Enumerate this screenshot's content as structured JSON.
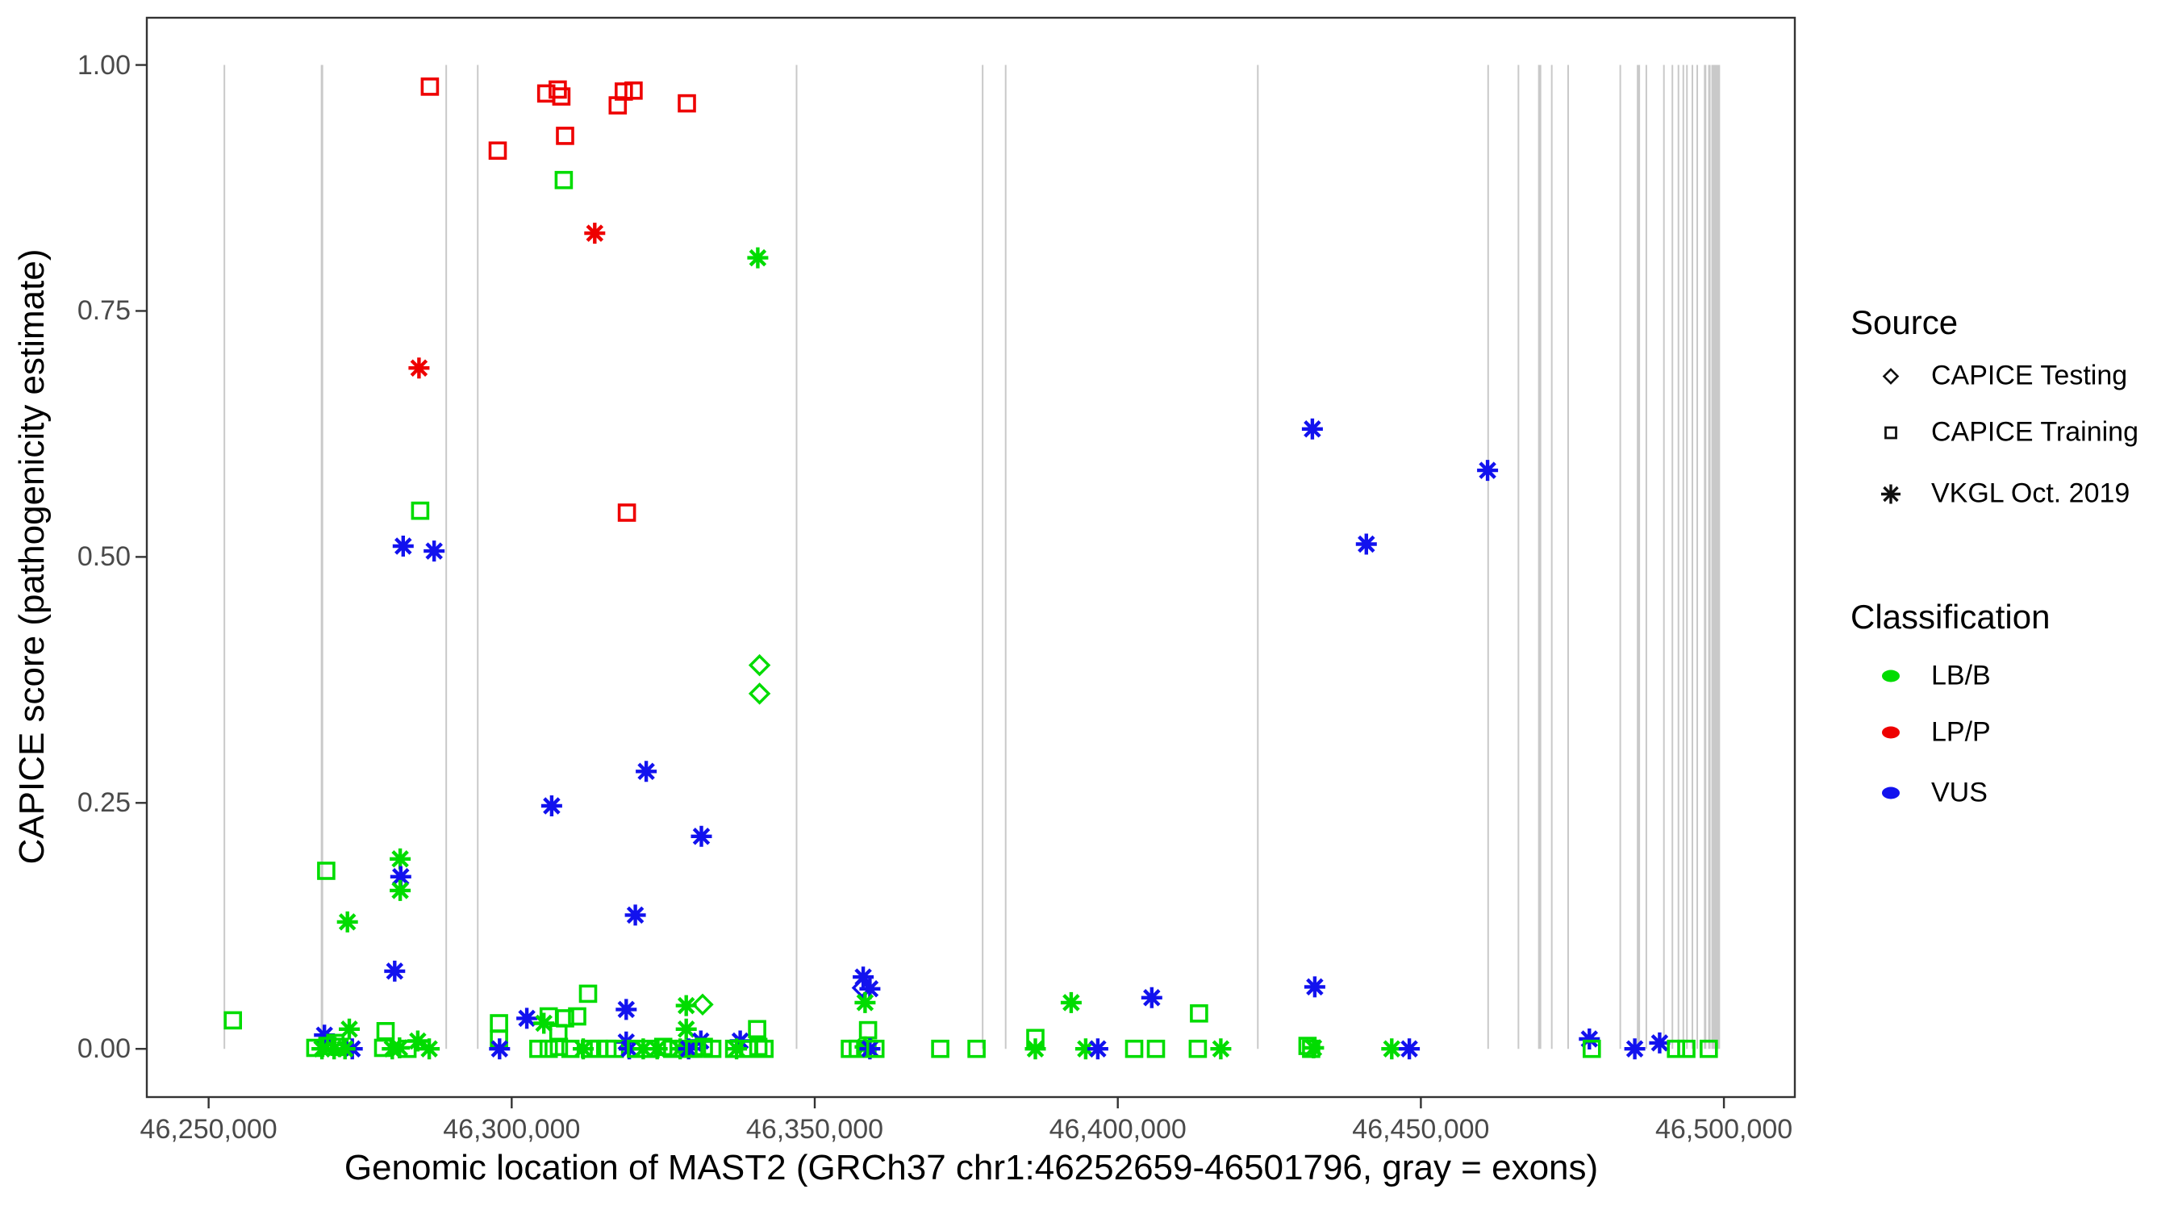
{
  "legend": {
    "source_title": "Source",
    "source_items": [
      {
        "label": "CAPICE Testing",
        "marker": "diamond"
      },
      {
        "label": "CAPICE Training",
        "marker": "square"
      },
      {
        "label": "VKGL Oct. 2019",
        "marker": "asterisk"
      }
    ],
    "class_title": "Classification",
    "class_items": [
      {
        "label": "LB/B",
        "key": "LB"
      },
      {
        "label": "LP/P",
        "key": "LP"
      },
      {
        "label": "VUS",
        "key": "VUS"
      }
    ]
  },
  "chart_data": {
    "type": "scatter",
    "title": "",
    "xlabel": "Genomic location of MAST2 (GRCh37 chr1:46252659-46501796, gray = exons)",
    "ylabel": "CAPICE score (pathogenicity estimate)",
    "xlim": [
      46239800,
      46511700
    ],
    "ylim": [
      -0.049,
      1.048
    ],
    "grid": "off",
    "legend_position": "right",
    "x_ticks": [
      46250000,
      46300000,
      46350000,
      46400000,
      46450000,
      46500000
    ],
    "x_tick_labels": [
      "46,250,000",
      "46,300,000",
      "46,350,000",
      "46,400,000",
      "46,450,000",
      "46,500,000"
    ],
    "y_ticks": [
      0,
      0.25,
      0.5,
      0.75,
      1
    ],
    "y_tick_labels": [
      "0.00",
      "0.25",
      "0.50",
      "0.75",
      "1.00"
    ],
    "colors": {
      "LB": "#00dc00",
      "LP": "#ee0000",
      "VUS": "#1212ee",
      "exon": "#c9c9c9",
      "axis": "#333333"
    },
    "marker_meaning": {
      "di": "CAPICE Testing",
      "sq": "CAPICE Training",
      "as": "VKGL Oct. 2019"
    },
    "class_meaning": {
      "LB": "LB/B",
      "LP": "LP/P",
      "VUS": "VUS"
    },
    "exon_span": {
      "y_from": 0.0,
      "y_to": 1.0
    },
    "exons": [
      {
        "pos": 46252600,
        "w": 2
      },
      {
        "pos": 46268700,
        "w": 3
      },
      {
        "pos": 46289200,
        "w": 2
      },
      {
        "pos": 46294400,
        "w": 2
      },
      {
        "pos": 46347000,
        "w": 2
      },
      {
        "pos": 46377700,
        "w": 2
      },
      {
        "pos": 46381500,
        "w": 2
      },
      {
        "pos": 46423100,
        "w": 2
      },
      {
        "pos": 46461100,
        "w": 2
      },
      {
        "pos": 46466100,
        "w": 2
      },
      {
        "pos": 46469600,
        "w": 4
      },
      {
        "pos": 46471600,
        "w": 2
      },
      {
        "pos": 46474300,
        "w": 2
      },
      {
        "pos": 46482900,
        "w": 2
      },
      {
        "pos": 46485900,
        "w": 4
      },
      {
        "pos": 46487200,
        "w": 2
      },
      {
        "pos": 46490100,
        "w": 2
      },
      {
        "pos": 46491500,
        "w": 2
      },
      {
        "pos": 46492500,
        "w": 2
      },
      {
        "pos": 46493300,
        "w": 2
      },
      {
        "pos": 46493900,
        "w": 2
      },
      {
        "pos": 46494800,
        "w": 2
      },
      {
        "pos": 46495600,
        "w": 2
      },
      {
        "pos": 46496900,
        "w": 3
      },
      {
        "pos": 46497600,
        "w": 3
      },
      {
        "pos": 46498200,
        "w": 4
      },
      {
        "pos": 46498900,
        "w": 7
      }
    ],
    "point_format": [
      "genomic_position",
      "capice_score",
      "marker",
      "classification"
    ],
    "points": [
      [
        46286500,
        0.978,
        "sq",
        "LP"
      ],
      [
        46305700,
        0.971,
        "sq",
        "LP"
      ],
      [
        46307600,
        0.975,
        "sq",
        "LP"
      ],
      [
        46308200,
        0.968,
        "sq",
        "LP"
      ],
      [
        46317500,
        0.959,
        "sq",
        "LP"
      ],
      [
        46318500,
        0.973,
        "sq",
        "LP"
      ],
      [
        46320100,
        0.974,
        "sq",
        "LP"
      ],
      [
        46328900,
        0.961,
        "sq",
        "LP"
      ],
      [
        46297700,
        0.913,
        "sq",
        "LP"
      ],
      [
        46308800,
        0.928,
        "sq",
        "LP"
      ],
      [
        46308600,
        0.883,
        "sq",
        "LB"
      ],
      [
        46313700,
        0.829,
        "as",
        "LP"
      ],
      [
        46340600,
        0.804,
        "as",
        "LB"
      ],
      [
        46284700,
        0.692,
        "as",
        "LP"
      ],
      [
        46284900,
        0.547,
        "sq",
        "LB"
      ],
      [
        46319000,
        0.545,
        "sq",
        "LP"
      ],
      [
        46282100,
        0.511,
        "as",
        "VUS"
      ],
      [
        46287200,
        0.506,
        "as",
        "VUS"
      ],
      [
        46432100,
        0.63,
        "as",
        "VUS"
      ],
      [
        46461000,
        0.588,
        "as",
        "VUS"
      ],
      [
        46441000,
        0.513,
        "as",
        "VUS"
      ],
      [
        46340900,
        0.39,
        "di",
        "LB"
      ],
      [
        46340900,
        0.361,
        "di",
        "LB"
      ],
      [
        46322200,
        0.282,
        "as",
        "VUS"
      ],
      [
        46306600,
        0.247,
        "as",
        "VUS"
      ],
      [
        46331300,
        0.216,
        "as",
        "VUS"
      ],
      [
        46320400,
        0.136,
        "as",
        "VUS"
      ],
      [
        46269400,
        0.181,
        "sq",
        "LB"
      ],
      [
        46281600,
        0.193,
        "as",
        "LB"
      ],
      [
        46281700,
        0.175,
        "as",
        "VUS"
      ],
      [
        46281600,
        0.161,
        "as",
        "LB"
      ],
      [
        46272900,
        0.129,
        "as",
        "LB"
      ],
      [
        46280700,
        0.079,
        "as",
        "VUS"
      ],
      [
        46254000,
        0.029,
        "sq",
        "LB"
      ],
      [
        46269100,
        0.014,
        "as",
        "VUS"
      ],
      [
        46273200,
        0.02,
        "as",
        "LB"
      ],
      [
        46279200,
        0.018,
        "sq",
        "LB"
      ],
      [
        46267600,
        0.001,
        "sq",
        "LB"
      ],
      [
        46268700,
        0.0,
        "as",
        "LB"
      ],
      [
        46269600,
        0.003,
        "sq",
        "LB"
      ],
      [
        46270700,
        0.0,
        "as",
        "LB"
      ],
      [
        46271600,
        0.002,
        "sq",
        "LB"
      ],
      [
        46273700,
        0.0,
        "as",
        "VUS"
      ],
      [
        46272500,
        0.0,
        "as",
        "LB"
      ],
      [
        46270900,
        0.006,
        "sq",
        "LB"
      ],
      [
        46278800,
        0.001,
        "sq",
        "LB"
      ],
      [
        46280300,
        0.0,
        "as",
        "LB"
      ],
      [
        46281500,
        0.001,
        "as",
        "LB"
      ],
      [
        46282800,
        0.0,
        "sq",
        "LB"
      ],
      [
        46284500,
        0.008,
        "as",
        "LB"
      ],
      [
        46286400,
        0.0,
        "as",
        "LB"
      ],
      [
        46297900,
        0.026,
        "sq",
        "LB"
      ],
      [
        46297900,
        0.01,
        "sq",
        "LB"
      ],
      [
        46298000,
        0.0,
        "as",
        "VUS"
      ],
      [
        46302500,
        0.031,
        "as",
        "VUS"
      ],
      [
        46305300,
        0.026,
        "as",
        "LB"
      ],
      [
        46306100,
        0.033,
        "sq",
        "LB"
      ],
      [
        46308800,
        0.031,
        "sq",
        "LB"
      ],
      [
        46310800,
        0.033,
        "sq",
        "LB"
      ],
      [
        46307700,
        0.016,
        "sq",
        "LB"
      ],
      [
        46312600,
        0.056,
        "sq",
        "LB"
      ],
      [
        46304400,
        0.0,
        "sq",
        "LB"
      ],
      [
        46306100,
        0.0,
        "sq",
        "LB"
      ],
      [
        46307800,
        0.002,
        "sq",
        "LB"
      ],
      [
        46309700,
        0.0,
        "sq",
        "LB"
      ],
      [
        46311800,
        0.0,
        "as",
        "LB"
      ],
      [
        46312900,
        0.0,
        "sq",
        "LB"
      ],
      [
        46318900,
        0.04,
        "as",
        "VUS"
      ],
      [
        46318900,
        0.007,
        "as",
        "VUS"
      ],
      [
        46314400,
        0.0,
        "sq",
        "LB"
      ],
      [
        46315800,
        0.0,
        "sq",
        "LB"
      ],
      [
        46317000,
        0.0,
        "sq",
        "LB"
      ],
      [
        46319400,
        0.0,
        "as",
        "VUS"
      ],
      [
        46320500,
        0.0,
        "sq",
        "LB"
      ],
      [
        46321700,
        0.0,
        "as",
        "LB"
      ],
      [
        46322900,
        0.0,
        "sq",
        "LB"
      ],
      [
        46324000,
        0.0,
        "as",
        "LB"
      ],
      [
        46328800,
        0.044,
        "as",
        "LB"
      ],
      [
        46331500,
        0.045,
        "di",
        "LB"
      ],
      [
        46328800,
        0.02,
        "as",
        "LB"
      ],
      [
        46331200,
        0.008,
        "as",
        "VUS"
      ],
      [
        46325000,
        0.002,
        "sq",
        "LB"
      ],
      [
        46326500,
        0.0,
        "sq",
        "LB"
      ],
      [
        46327800,
        0.0,
        "as",
        "LB"
      ],
      [
        46328400,
        0.0,
        "sq",
        "LB"
      ],
      [
        46329200,
        0.0,
        "as",
        "VUS"
      ],
      [
        46330100,
        0.0,
        "sq",
        "LB"
      ],
      [
        46331700,
        0.002,
        "sq",
        "LB"
      ],
      [
        46333100,
        0.0,
        "sq",
        "LB"
      ],
      [
        46337700,
        0.008,
        "as",
        "VUS"
      ],
      [
        46340500,
        0.02,
        "sq",
        "LB"
      ],
      [
        46336700,
        0.0,
        "sq",
        "LB"
      ],
      [
        46337100,
        0.0,
        "as",
        "LB"
      ],
      [
        46339000,
        0.0,
        "sq",
        "LB"
      ],
      [
        46340700,
        0.002,
        "sq",
        "LB"
      ],
      [
        46341700,
        0.0,
        "sq",
        "LB"
      ],
      [
        46358000,
        0.073,
        "as",
        "VUS"
      ],
      [
        46357900,
        0.062,
        "di",
        "VUS"
      ],
      [
        46359100,
        0.061,
        "as",
        "VUS"
      ],
      [
        46358300,
        0.047,
        "as",
        "LB"
      ],
      [
        46358800,
        0.019,
        "sq",
        "LB"
      ],
      [
        46355800,
        0.0,
        "sq",
        "LB"
      ],
      [
        46357100,
        0.0,
        "sq",
        "LB"
      ],
      [
        46358300,
        0.002,
        "as",
        "LB"
      ],
      [
        46358700,
        0.0,
        "sq",
        "LB"
      ],
      [
        46359100,
        0.0,
        "as",
        "VUS"
      ],
      [
        46360000,
        0.0,
        "sq",
        "LB"
      ],
      [
        46370700,
        0.0,
        "sq",
        "LB"
      ],
      [
        46376700,
        0.0,
        "sq",
        "LB"
      ],
      [
        46386400,
        0.011,
        "sq",
        "LB"
      ],
      [
        46386400,
        0.0,
        "as",
        "LB"
      ],
      [
        46392300,
        0.047,
        "as",
        "LB"
      ],
      [
        46394700,
        0.0,
        "as",
        "LB"
      ],
      [
        46396700,
        0.0,
        "as",
        "VUS"
      ],
      [
        46405600,
        0.052,
        "as",
        "VUS"
      ],
      [
        46402700,
        0.0,
        "sq",
        "LB"
      ],
      [
        46406300,
        0.0,
        "sq",
        "LB"
      ],
      [
        46413400,
        0.036,
        "sq",
        "LB"
      ],
      [
        46413200,
        0.0,
        "sq",
        "LB"
      ],
      [
        46417000,
        0.0,
        "as",
        "LB"
      ],
      [
        46432500,
        0.063,
        "as",
        "VUS"
      ],
      [
        46431300,
        0.003,
        "sq",
        "LB"
      ],
      [
        46431900,
        0.0,
        "sq",
        "LB"
      ],
      [
        46432300,
        0.001,
        "as",
        "LB"
      ],
      [
        46445200,
        0.0,
        "as",
        "LB"
      ],
      [
        46448100,
        0.0,
        "as",
        "VUS"
      ],
      [
        46477800,
        0.01,
        "as",
        "VUS"
      ],
      [
        46478200,
        0.0,
        "sq",
        "LB"
      ],
      [
        46485300,
        0.0,
        "as",
        "VUS"
      ],
      [
        46489400,
        0.006,
        "as",
        "VUS"
      ],
      [
        46492100,
        0.0,
        "sq",
        "LB"
      ],
      [
        46493800,
        0.0,
        "sq",
        "LB"
      ],
      [
        46497500,
        0.0,
        "sq",
        "LB"
      ]
    ]
  }
}
